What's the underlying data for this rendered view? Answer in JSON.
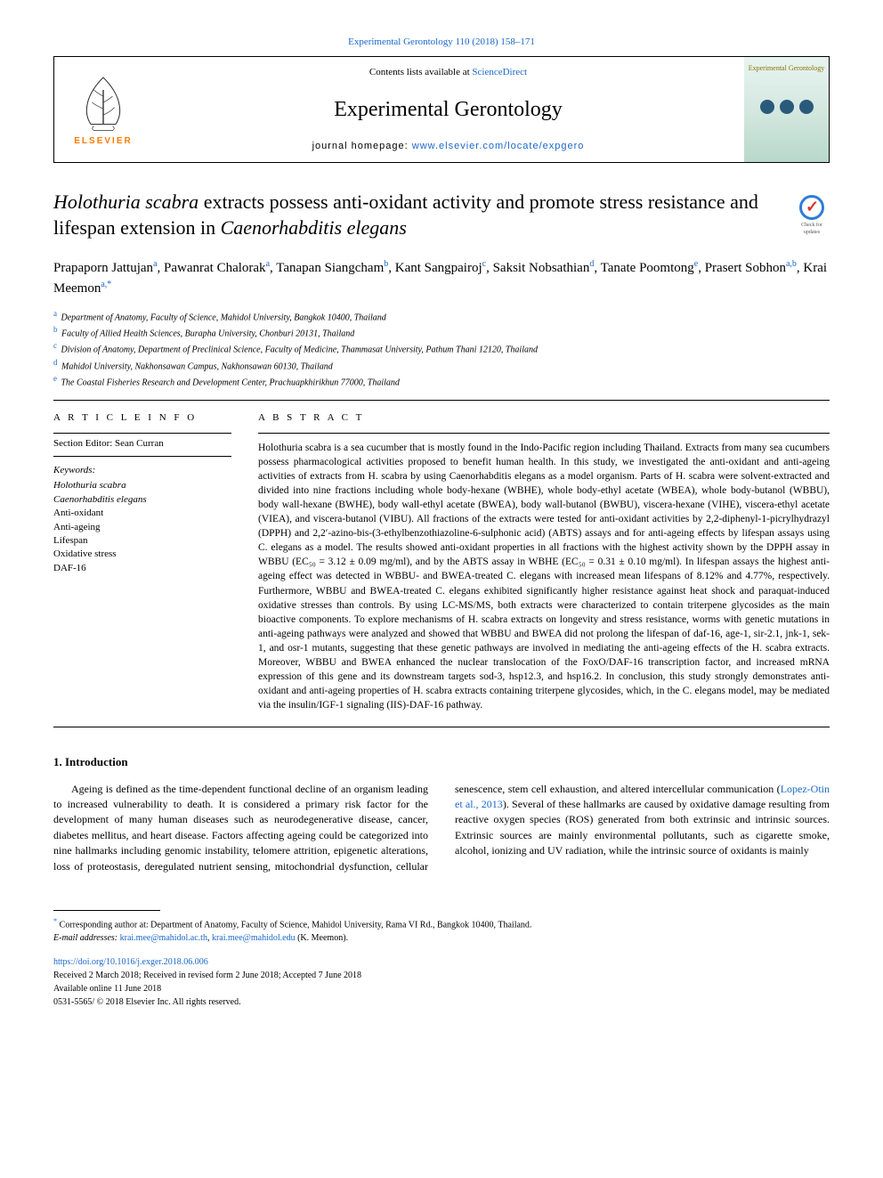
{
  "top_citation": "Experimental Gerontology 110 (2018) 158–171",
  "header": {
    "contents_prefix": "Contents lists available at ",
    "contents_link": "ScienceDirect",
    "journal_name": "Experimental Gerontology",
    "homepage_prefix": "journal homepage: ",
    "homepage_link": "www.elsevier.com/locate/expgero",
    "elsevier_label": "ELSEVIER",
    "cover_title": "Experimental Gerontology"
  },
  "check_badge": "Check for updates",
  "title_parts": {
    "p1": "Holothuria scabra",
    "p2": " extracts possess anti-oxidant activity and promote stress resistance and lifespan extension in ",
    "p3": "Caenorhabditis elegans"
  },
  "authors_html": "Prapaporn Jattujan<sup>a</sup>, Pawanrat Chalorak<sup>a</sup>, Tanapan Siangcham<sup>b</sup>, Kant Sangpairoj<sup>c</sup>, Saksit Nobsathian<sup>d</sup>, Tanate Poomtong<sup>e</sup>, Prasert Sobhon<sup>a,b</sup>, Krai Meemon<sup>a,*</sup>",
  "affiliations": [
    {
      "sup": "a",
      "text": "Department of Anatomy, Faculty of Science, Mahidol University, Bangkok 10400, Thailand"
    },
    {
      "sup": "b",
      "text": "Faculty of Allied Health Sciences, Burapha University, Chonburi 20131, Thailand"
    },
    {
      "sup": "c",
      "text": "Division of Anatomy, Department of Preclinical Science, Faculty of Medicine, Thammasat University, Pathum Thani 12120, Thailand"
    },
    {
      "sup": "d",
      "text": "Mahidol University, Nakhonsawan Campus, Nakhonsawan 60130, Thailand"
    },
    {
      "sup": "e",
      "text": "The Coastal Fisheries Research and Development Center, Prachuapkhirikhun 77000, Thailand"
    }
  ],
  "article_info": {
    "header": "A R T I C L E  I N F O",
    "section_editor_label": "Section Editor: Sean Curran",
    "keywords_label": "Keywords:",
    "keywords": [
      "Holothuria scabra",
      "Caenorhabditis elegans",
      "Anti-oxidant",
      "Anti-ageing",
      "Lifespan",
      "Oxidative stress",
      "DAF-16"
    ]
  },
  "abstract": {
    "header": "A B S T R A C T",
    "text": "Holothuria scabra is a sea cucumber that is mostly found in the Indo-Pacific region including Thailand. Extracts from many sea cucumbers possess pharmacological activities proposed to benefit human health. In this study, we investigated the anti-oxidant and anti-ageing activities of extracts from H. scabra by using Caenorhabditis elegans as a model organism. Parts of H. scabra were solvent-extracted and divided into nine fractions including whole body-hexane (WBHE), whole body-ethyl acetate (WBEA), whole body-butanol (WBBU), body wall-hexane (BWHE), body wall-ethyl acetate (BWEA), body wall-butanol (BWBU), viscera-hexane (VIHE), viscera-ethyl acetate (VIEA), and viscera-butanol (VIBU). All fractions of the extracts were tested for anti-oxidant activities by 2,2-diphenyl-1-picrylhydrazyl (DPPH) and 2,2′-azino-bis-(3-ethylbenzothiazoline-6-sulphonic acid) (ABTS) assays and for anti-ageing effects by lifespan assays using C. elegans as a model. The results showed anti-oxidant properties in all fractions with the highest activity shown by the DPPH assay in WBBU (EC₅₀ = 3.12 ± 0.09 mg/ml), and by the ABTS assay in WBHE (EC₅₀ = 0.31 ± 0.10 mg/ml). In lifespan assays the highest anti-ageing effect was detected in WBBU- and BWEA-treated C. elegans with increased mean lifespans of 8.12% and 4.77%, respectively. Furthermore, WBBU and BWEA-treated C. elegans exhibited significantly higher resistance against heat shock and paraquat-induced oxidative stresses than controls. By using LC-MS/MS, both extracts were characterized to contain triterpene glycosides as the main bioactive components. To explore mechanisms of H. scabra extracts on longevity and stress resistance, worms with genetic mutations in anti-ageing pathways were analyzed and showed that WBBU and BWEA did not prolong the lifespan of daf-16, age-1, sir-2.1, jnk-1, sek-1, and osr-1 mutants, suggesting that these genetic pathways are involved in mediating the anti-ageing effects of the H. scabra extracts. Moreover, WBBU and BWEA enhanced the nuclear translocation of the FoxO/DAF-16 transcription factor, and increased mRNA expression of this gene and its downstream targets sod-3, hsp12.3, and hsp16.2. In conclusion, this study strongly demonstrates anti-oxidant and anti-ageing properties of H. scabra extracts containing triterpene glycosides, which, in the C. elegans model, may be mediated via the insulin/IGF-1 signaling (IIS)-DAF-16 pathway."
  },
  "introduction": {
    "header": "1. Introduction",
    "para1": "Ageing is defined as the time-dependent functional decline of an organism leading to increased vulnerability to death. It is considered a primary risk factor for the development of many human diseases such as neurodegenerative disease, cancer, diabetes mellitus, and heart disease. Factors affecting ageing could be categorized into nine hallmarks including genomic instability, telomere attrition, epigenetic alterations, loss of proteostasis, deregulated nutrient sensing, mitochondrial dysfunction, cellular senescence, stem cell exhaustion, and altered intercellular communication (",
    "cite": "Lopez-Otin et al., 2013",
    "para2": "). Several of these hallmarks are caused by oxidative damage resulting from reactive oxygen species (ROS) generated from both extrinsic and intrinsic sources. Extrinsic sources are mainly environmental pollutants, such as cigarette smoke, alcohol, ionizing and UV radiation, while the intrinsic source of oxidants is mainly"
  },
  "footer": {
    "corresponding": "Corresponding author at: Department of Anatomy, Faculty of Science, Mahidol University, Rama VI Rd., Bangkok 10400, Thailand.",
    "email_label": "E-mail addresses: ",
    "email1": "krai.mee@mahidol.ac.th",
    "email_sep": ", ",
    "email2": "krai.mee@mahidol.edu",
    "email_name": " (K. Meemon).",
    "doi": "https://doi.org/10.1016/j.exger.2018.06.006",
    "received": "Received 2 March 2018; Received in revised form 2 June 2018; Accepted 7 June 2018",
    "available": "Available online 11 June 2018",
    "copyright": "0531-5565/ © 2018 Elsevier Inc. All rights reserved."
  },
  "colors": {
    "link": "#1a67c9",
    "elsevier_orange": "#ff7a00",
    "cover_bg_top": "#e8f4f0",
    "cover_bg_bottom": "#b8d8cc",
    "cover_text": "#8b7500",
    "cover_dot": "#2a5a7a",
    "check_blue": "#2e7cd6",
    "check_red": "#d6342e"
  }
}
